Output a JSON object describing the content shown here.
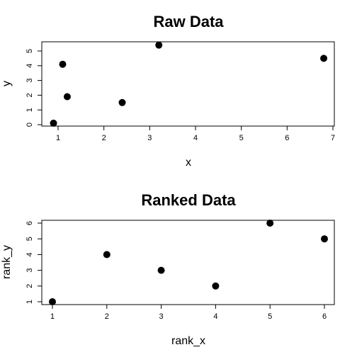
{
  "chart_data": [
    {
      "type": "scatter",
      "title": "Raw Data",
      "xlabel": "x",
      "ylabel": "y",
      "xlim": [
        0.9,
        6.8
      ],
      "ylim": [
        0.1,
        5.4
      ],
      "xticks": [
        1,
        2,
        3,
        4,
        5,
        6,
        7
      ],
      "yticks": [
        0,
        1,
        2,
        3,
        4,
        5
      ],
      "x": [
        0.9,
        1.1,
        1.2,
        2.4,
        3.2,
        6.8
      ],
      "y": [
        0.1,
        4.1,
        1.9,
        1.5,
        5.4,
        4.5
      ],
      "marker": "filled-circle",
      "grid": false
    },
    {
      "type": "scatter",
      "title": "Ranked Data",
      "xlabel": "rank_x",
      "ylabel": "rank_y",
      "xlim": [
        1,
        6
      ],
      "ylim": [
        1,
        6
      ],
      "xticks": [
        1,
        2,
        3,
        4,
        5,
        6
      ],
      "yticks": [
        1,
        2,
        3,
        4,
        5,
        6
      ],
      "x": [
        1,
        2,
        3,
        4,
        5,
        6
      ],
      "y": [
        1,
        4,
        3,
        2,
        6,
        5
      ],
      "marker": "filled-circle",
      "grid": false
    }
  ]
}
